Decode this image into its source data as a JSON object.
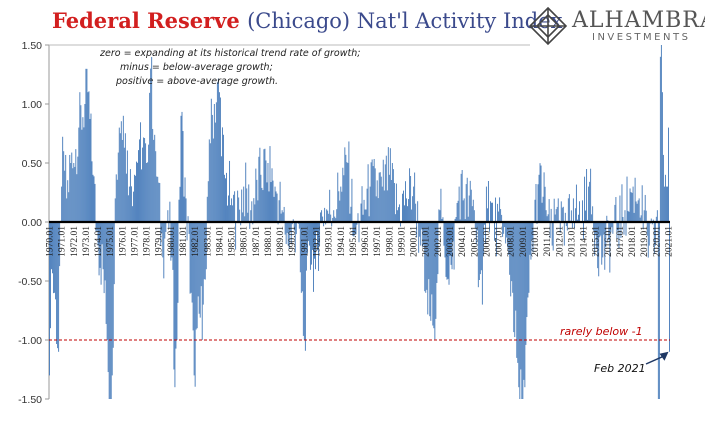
{
  "chart_data": {
    "type": "bar",
    "title_red": "Federal Reserve",
    "title_rest": "(Chicago) Nat'l Activity Index",
    "xlabel": "",
    "ylabel": "",
    "ylim": [
      -1.5,
      1.5
    ],
    "y_ticks": [
      "1.50",
      "1.00",
      "0.50",
      "0.00",
      "-0.50",
      "-1.00",
      "-1.50"
    ],
    "y_tick_values": [
      1.5,
      1.0,
      0.5,
      0.0,
      -0.5,
      -1.0,
      -1.5
    ],
    "x_tick_labels": [
      "1970.01",
      "1971.01",
      "1972.01",
      "1973.01",
      "1974.01",
      "1975.01",
      "1976.01",
      "1977.01",
      "1978.01",
      "1979.01",
      "1980.01",
      "1981.01",
      "1982.01",
      "1983.01",
      "1984.01",
      "1985.01",
      "1986.01",
      "1987.01",
      "1988.01",
      "1989.01",
      "1990.01",
      "1991.01",
      "1992.01",
      "1993.01",
      "1994.01",
      "1995.01",
      "1996.01",
      "1997.01",
      "1998.01",
      "1999.01",
      "2000.01",
      "2001.01",
      "2002.01",
      "2003.01",
      "2004.01",
      "2005.01",
      "2006.01",
      "2007.01",
      "2008.01",
      "2009.01",
      "2010.01",
      "2011.01",
      "2012.01",
      "2013.01",
      "2014.01",
      "2015.01",
      "2016.01",
      "2017.01",
      "2018.01",
      "2019.01",
      "2020.01",
      "2021.01"
    ],
    "notes": [
      "zero = expanding at its historical trend rate of growth;",
      "minus = below-average growth;",
      "positive = above-average growth."
    ],
    "reference_line": {
      "value": -1.0,
      "label": "rarely below -1"
    },
    "annotation": {
      "label": "Feb 2021"
    },
    "colors": {
      "bars": "#4f81bd",
      "reference": "#c00000",
      "title_red": "#d21f1f",
      "title_blue": "#3b4a8c",
      "axis": "#999999",
      "arrow": "#1f3864"
    },
    "monthly_data": {
      "start": "1970.01",
      "end": "2021.02",
      "anchors": [
        [
          "1970.01",
          -1.3
        ],
        [
          "1970.02",
          -0.9
        ],
        [
          "1970.03",
          -0.4
        ],
        [
          "1970.06",
          -0.6
        ],
        [
          "1970.10",
          -1.1
        ],
        [
          "1971.01",
          0.3
        ],
        [
          "1971.03",
          0.6
        ],
        [
          "1971.06",
          0.2
        ],
        [
          "1971.10",
          0.5
        ],
        [
          "1972.01",
          0.5
        ],
        [
          "1972.06",
          0.8
        ],
        [
          "1972.12",
          1.0
        ],
        [
          "1973.03",
          1.1
        ],
        [
          "1973.08",
          0.4
        ],
        [
          "1974.01",
          -0.2
        ],
        [
          "1974.06",
          -0.4
        ],
        [
          "1974.10",
          -1.0
        ],
        [
          "1975.01",
          -1.5
        ],
        [
          "1975.03",
          -1.3
        ],
        [
          "1975.06",
          0.2
        ],
        [
          "1975.10",
          0.8
        ],
        [
          "1976.02",
          0.9
        ],
        [
          "1976.08",
          0.3
        ],
        [
          "1977.01",
          0.4
        ],
        [
          "1977.06",
          0.7
        ],
        [
          "1978.01",
          0.5
        ],
        [
          "1978.05",
          1.3
        ],
        [
          "1978.10",
          0.6
        ],
        [
          "1979.05",
          -0.3
        ],
        [
          "1979.10",
          0.1
        ],
        [
          "1980.02",
          -0.3
        ],
        [
          "1980.05",
          -1.4
        ],
        [
          "1980.07",
          -1.0
        ],
        [
          "1980.11",
          0.9
        ],
        [
          "1981.04",
          0.2
        ],
        [
          "1981.09",
          -0.6
        ],
        [
          "1981.12",
          -1.3
        ],
        [
          "1982.03",
          -0.9
        ],
        [
          "1982.09",
          -0.7
        ],
        [
          "1982.12",
          -0.4
        ],
        [
          "1983.03",
          0.7
        ],
        [
          "1983.08",
          1.0
        ],
        [
          "1984.01",
          1.1
        ],
        [
          "1984.06",
          0.4
        ],
        [
          "1985.01",
          0.2
        ],
        [
          "1985.06",
          0.0
        ],
        [
          "1986.01",
          0.3
        ],
        [
          "1986.08",
          0.1
        ],
        [
          "1987.06",
          0.4
        ],
        [
          "1988.01",
          0.5
        ],
        [
          "1988.08",
          0.3
        ],
        [
          "1989.03",
          0.1
        ],
        [
          "1989.09",
          -0.2
        ],
        [
          "1990.06",
          0.0
        ],
        [
          "1990.10",
          -0.6
        ],
        [
          "1991.01",
          -1.0
        ],
        [
          "1991.06",
          -0.2
        ],
        [
          "1991.12",
          -0.4
        ],
        [
          "1992.06",
          0.1
        ],
        [
          "1993.06",
          0.1
        ],
        [
          "1994.01",
          0.3
        ],
        [
          "1994.08",
          0.5
        ],
        [
          "1995.03",
          -0.1
        ],
        [
          "1995.08",
          0.0
        ],
        [
          "1996.06",
          0.3
        ],
        [
          "1997.06",
          0.3
        ],
        [
          "1998.01",
          0.4
        ],
        [
          "1998.09",
          0.1
        ],
        [
          "1999.06",
          0.2
        ],
        [
          "2000.01",
          0.3
        ],
        [
          "2000.08",
          -0.2
        ],
        [
          "2001.01",
          -0.6
        ],
        [
          "2001.09",
          -0.9
        ],
        [
          "2002.03",
          0.1
        ],
        [
          "2002.08",
          -0.3
        ],
        [
          "2003.03",
          -0.4
        ],
        [
          "2003.10",
          0.3
        ],
        [
          "2004.03",
          0.2
        ],
        [
          "2005.01",
          0.1
        ],
        [
          "2005.09",
          -0.7
        ],
        [
          "2006.01",
          0.3
        ],
        [
          "2006.08",
          0.0
        ],
        [
          "2007.06",
          -0.1
        ],
        [
          "2008.03",
          -0.6
        ],
        [
          "2008.09",
          -1.4
        ],
        [
          "2008.12",
          -1.5
        ],
        [
          "2009.03",
          -1.4
        ],
        [
          "2009.07",
          -0.6
        ],
        [
          "2009.12",
          0.0
        ],
        [
          "2010.05",
          0.4
        ],
        [
          "2010.12",
          0.1
        ],
        [
          "2011.06",
          -0.2
        ],
        [
          "2011.12",
          0.2
        ],
        [
          "2012.06",
          -0.2
        ],
        [
          "2013.03",
          0.2
        ],
        [
          "2013.10",
          0.0
        ],
        [
          "2014.06",
          0.3
        ],
        [
          "2015.01",
          -0.1
        ],
        [
          "2015.08",
          -0.3
        ],
        [
          "2016.06",
          -0.1
        ],
        [
          "2017.06",
          0.1
        ],
        [
          "2018.02",
          0.3
        ],
        [
          "2018.08",
          0.2
        ],
        [
          "2019.06",
          -0.2
        ],
        [
          "2019.12",
          -0.2
        ],
        [
          "2020.02",
          0.1
        ],
        [
          "2020.03",
          -1.5
        ],
        [
          "2020.04",
          -1.5
        ],
        [
          "2020.05",
          1.4
        ],
        [
          "2020.06",
          1.5
        ],
        [
          "2020.07",
          1.1
        ],
        [
          "2020.09",
          0.3
        ],
        [
          "2020.10",
          0.4
        ],
        [
          "2020.11",
          0.3
        ],
        [
          "2020.12",
          0.3
        ],
        [
          "2021.01",
          0.8
        ],
        [
          "2021.02",
          -1.1
        ]
      ]
    }
  },
  "logo": {
    "brand": "ALHAMBRA",
    "subtitle": "INVESTMENTS"
  }
}
